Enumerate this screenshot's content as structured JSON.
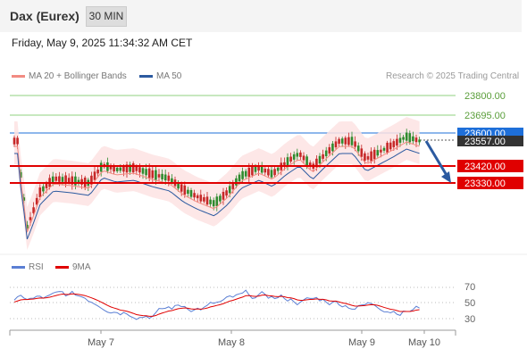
{
  "header": {
    "title": "Dax (Eurex)",
    "timeframe_label": "30 MIN"
  },
  "datetime": "Friday, May 9, 2025 11:34:32 AM CET",
  "legend": {
    "ma20": {
      "label": "MA 20 + Bollinger Bands",
      "color": "#f28b82"
    },
    "ma50": {
      "label": "MA 50",
      "color": "#2c5aa0"
    },
    "rsi": {
      "label": "RSI",
      "color": "#5b7fd4"
    },
    "ma9": {
      "label": "9MA",
      "color": "#e00000"
    }
  },
  "credit": "Research © 2025 Trading Central",
  "price_labels": {
    "r2": "23800.00",
    "r1": "23695.00",
    "pivot": "23600.00",
    "last": "23557.00",
    "s1": "23420.00",
    "s2": "23330.00"
  },
  "rsi_axis": {
    "hi": "70",
    "mid": "50",
    "lo": "30"
  },
  "x_axis": [
    "May 7",
    "May 8",
    "May 9",
    "May 10"
  ],
  "colors": {
    "up": "#2e8b2e",
    "down": "#c62828",
    "support": "#e00000",
    "pivot": "#1e6fd9",
    "resistance": "#7cc46a",
    "arrow": "#2c5aa0"
  }
}
